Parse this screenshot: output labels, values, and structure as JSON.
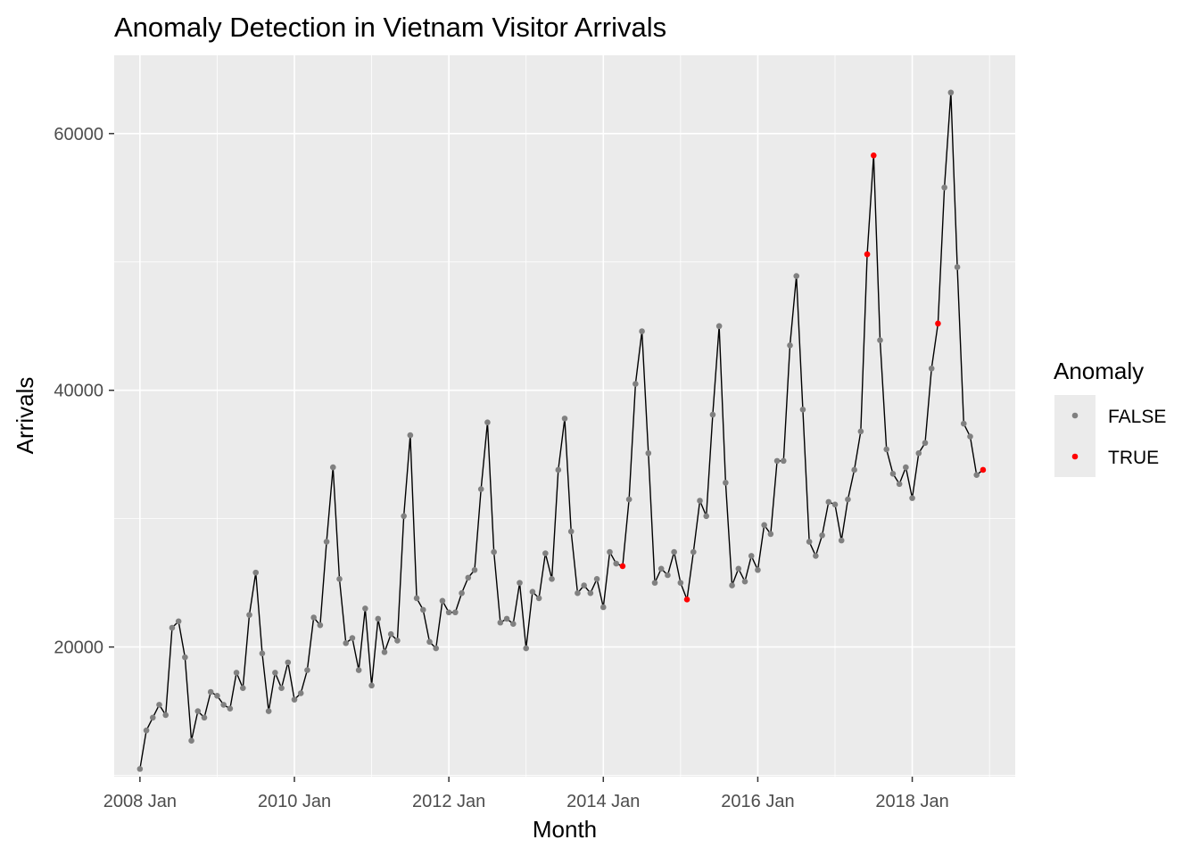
{
  "chart_data": {
    "type": "line",
    "title": "Anomaly Detection in Vietnam Visitor Arrivals",
    "xlabel": "Month",
    "ylabel": "Arrivals",
    "xlim": [
      "2007-09",
      "2019-05"
    ],
    "ylim": [
      9900,
      66100
    ],
    "x_ticks": [
      {
        "date": "2008-01",
        "label": "2008 Jan"
      },
      {
        "date": "2010-01",
        "label": "2010 Jan"
      },
      {
        "date": "2012-01",
        "label": "2012 Jan"
      },
      {
        "date": "2014-01",
        "label": "2014 Jan"
      },
      {
        "date": "2016-01",
        "label": "2016 Jan"
      },
      {
        "date": "2018-01",
        "label": "2018 Jan"
      }
    ],
    "y_ticks": [
      {
        "value": 20000,
        "label": "20000"
      },
      {
        "value": 40000,
        "label": "40000"
      },
      {
        "value": 60000,
        "label": "60000"
      }
    ],
    "grid": true,
    "colors": {
      "panel": "#ebebeb",
      "grid": "#ffffff",
      "line": "#000000",
      "false_point": "#808080",
      "true_point": "#ff0000"
    },
    "legend": {
      "title": "Anomaly",
      "position": "right",
      "entries": [
        {
          "label": "FALSE",
          "color": "#808080"
        },
        {
          "label": "TRUE",
          "color": "#ff0000"
        }
      ]
    },
    "start_month": "2008-01",
    "series": [
      {
        "values": [
          10500,
          13500,
          14500,
          15500,
          14700,
          21500,
          22000,
          19200,
          12700,
          15000,
          14500,
          16500,
          16200,
          15500,
          15200,
          18000,
          16800,
          22500,
          25800,
          19500,
          15000,
          18000,
          16800,
          18800,
          15900,
          16400,
          18200,
          22300,
          21700,
          28200,
          34000,
          25300,
          20300,
          20700,
          18200,
          23000,
          17000,
          22200,
          19600,
          21000,
          20500,
          30200,
          36500,
          23800,
          22900,
          20400,
          19900,
          23600,
          22700,
          22700,
          24200,
          25400,
          26000,
          32300,
          37500,
          27400,
          21900,
          22200,
          21800,
          25000,
          19900,
          24300,
          23800,
          27300,
          25300,
          33800,
          37800,
          29000,
          24200,
          24800,
          24200,
          25300,
          23100,
          27400,
          26500,
          26300,
          31500,
          40500,
          44600,
          35100,
          25000,
          26100,
          25600,
          27400,
          25000,
          23700,
          27400,
          31400,
          30200,
          38100,
          45000,
          32800,
          24800,
          26100,
          25100,
          27100,
          26000,
          29500,
          28800,
          34500,
          34500,
          43500,
          48900,
          38500,
          28200,
          27100,
          28700,
          31300,
          31100,
          28300,
          31500,
          33800,
          36800,
          50600,
          58300,
          43900,
          35400,
          33500,
          32700,
          34000,
          31600,
          35100,
          35900,
          41700,
          45200,
          55800,
          63200,
          49600,
          37400,
          36400,
          33400,
          33800
        ],
        "anomalies": [
          75,
          85,
          113,
          114,
          124,
          131
        ]
      }
    ]
  }
}
